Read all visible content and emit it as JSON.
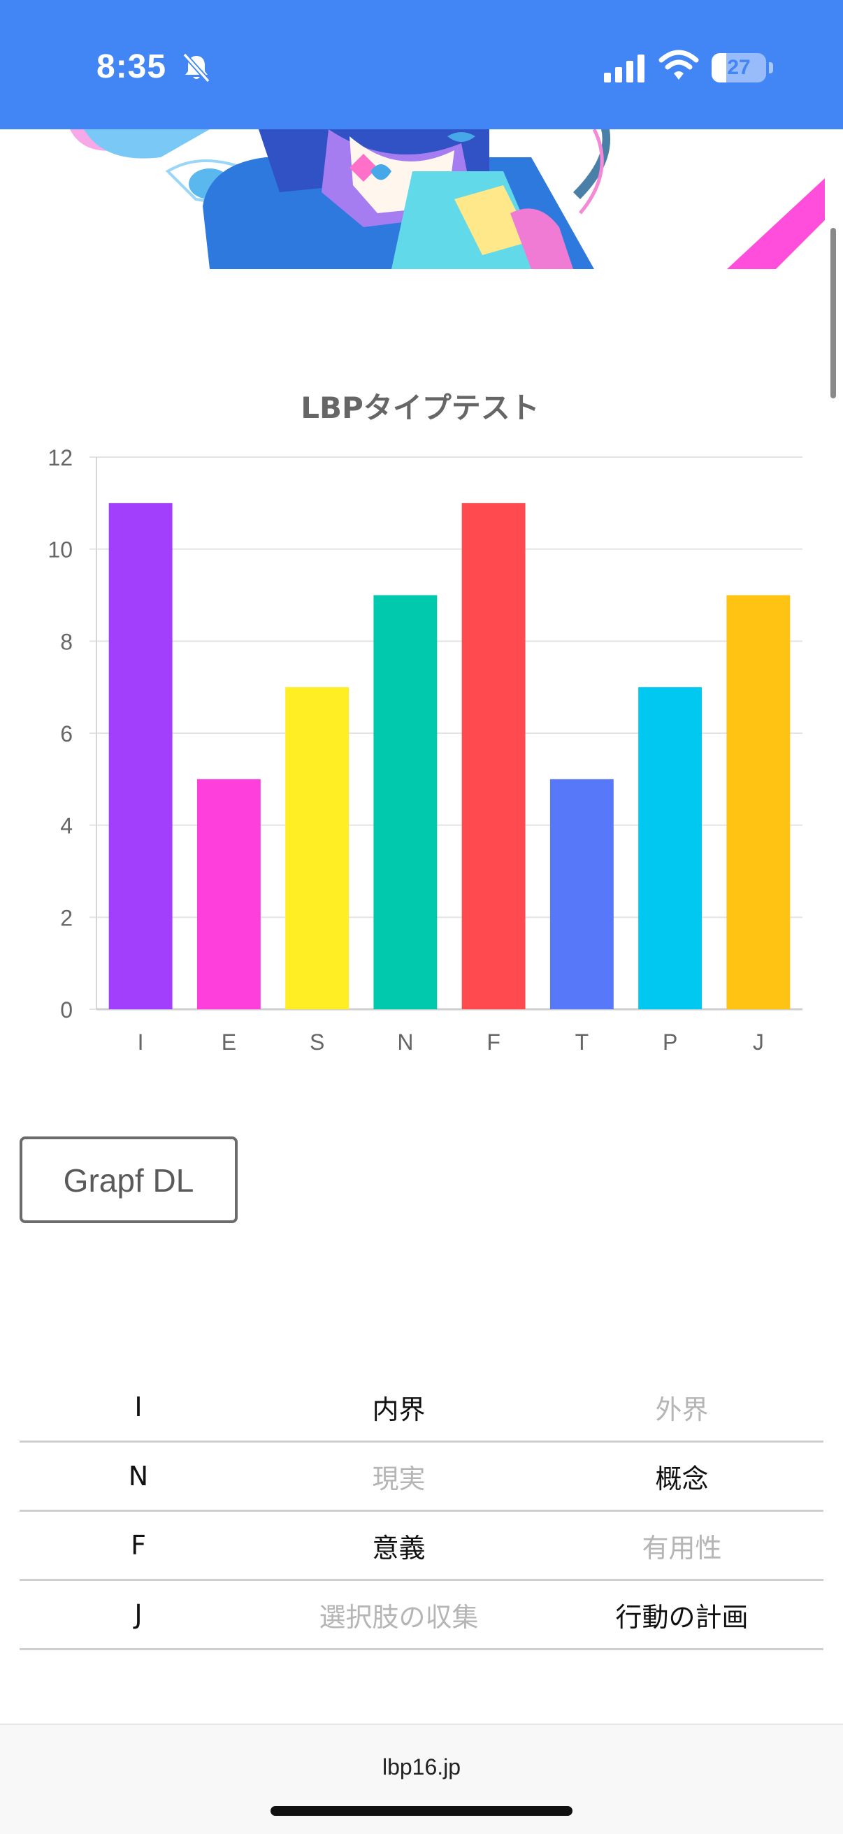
{
  "status_bar": {
    "time": "8:35",
    "battery_level": "27",
    "battery_fraction": 0.27,
    "background_color": "#4285f4"
  },
  "chart_data": {
    "type": "bar",
    "title": "LBPタイプテスト",
    "categories": [
      "I",
      "E",
      "S",
      "N",
      "F",
      "T",
      "P",
      "J"
    ],
    "values": [
      11,
      5,
      7,
      9,
      11,
      5,
      7,
      9
    ],
    "colors": [
      "#a23ffd",
      "#ff3fdc",
      "#ffee24",
      "#00c9ae",
      "#ff4b4f",
      "#5878fa",
      "#00c8f0",
      "#ffc313"
    ],
    "ylim": [
      0,
      12
    ],
    "yticks": [
      0,
      2,
      4,
      6,
      8,
      10,
      12
    ],
    "xlabel": "",
    "ylabel": "",
    "grid": true,
    "legend": "none"
  },
  "actions": {
    "download_label": "Grapf DL"
  },
  "results": [
    {
      "key": "I",
      "a": "内界",
      "b": "外界",
      "selected": "a"
    },
    {
      "key": "N",
      "a": "現実",
      "b": "概念",
      "selected": "b"
    },
    {
      "key": "F",
      "a": "意義",
      "b": "有用性",
      "selected": "a"
    },
    {
      "key": "J",
      "a": "選択肢の収集",
      "b": "行動の計画",
      "selected": "b"
    }
  ],
  "browser": {
    "url": "lbp16.jp"
  }
}
